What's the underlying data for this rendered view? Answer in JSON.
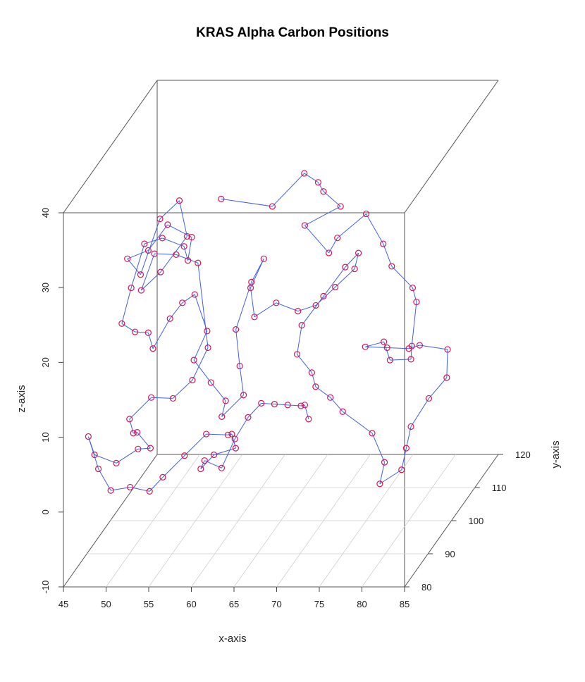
{
  "chart_data": {
    "type": "scatter",
    "title": "KRAS Alpha Carbon Positions",
    "xlabel": "x-axis",
    "ylabel": "y-axis",
    "zlabel": "z-axis",
    "xlim": [
      45,
      85
    ],
    "ylim": [
      80,
      120
    ],
    "zlim": [
      -10,
      40
    ],
    "x_ticks": [
      "45",
      "50",
      "55",
      "60",
      "65",
      "70",
      "75",
      "80",
      "85"
    ],
    "y_ticks": [
      "80",
      "90",
      "100",
      "110",
      "120"
    ],
    "z_ticks": [
      "-10",
      "0",
      "10",
      "20",
      "30",
      "40"
    ],
    "grid": true,
    "connected": true,
    "point_color": "#d4145a",
    "line_color": "#3f5fe8",
    "series": [
      {
        "points": [
          [
            58,
            100,
            33
          ],
          [
            64,
            100,
            32
          ],
          [
            65,
            110,
            32
          ],
          [
            68,
            105,
            33
          ],
          [
            70,
            100,
            34
          ],
          [
            72,
            100,
            32
          ],
          [
            70,
            92,
            33
          ],
          [
            72,
            95,
            28
          ],
          [
            73,
            95,
            30
          ],
          [
            75,
            100,
            31
          ],
          [
            77,
            100,
            27
          ],
          [
            78,
            100,
            24
          ],
          [
            81,
            98,
            22
          ],
          [
            82,
            96,
            21
          ],
          [
            82,
            94,
            16
          ],
          [
            83,
            90,
            16
          ],
          [
            80,
            92,
            15
          ],
          [
            79,
            93,
            17
          ],
          [
            76,
            96,
            15
          ],
          [
            78,
            98,
            14
          ],
          [
            80,
            100,
            13
          ],
          [
            81,
            101,
            13
          ],
          [
            84,
            102,
            12
          ],
          [
            85,
            98,
            10
          ],
          [
            84,
            94,
            9
          ],
          [
            83,
            90,
            7
          ],
          [
            83,
            88,
            5
          ],
          [
            83,
            86,
            3
          ],
          [
            81,
            84,
            2
          ],
          [
            81,
            86,
            4
          ],
          [
            79,
            88,
            7
          ],
          [
            75,
            90,
            9
          ],
          [
            73,
            92,
            10
          ],
          [
            71,
            93,
            11
          ],
          [
            70,
            95,
            12
          ],
          [
            68,
            96,
            14
          ],
          [
            68,
            98,
            17
          ],
          [
            70,
            100,
            20
          ],
          [
            72,
            102,
            23
          ],
          [
            73,
            104,
            24
          ],
          [
            72,
            106,
            21
          ],
          [
            70,
            105,
            19
          ],
          [
            68,
            104,
            17
          ],
          [
            67,
            100,
            18
          ],
          [
            65,
            98,
            20
          ],
          [
            63,
            96,
            19
          ],
          [
            62,
            98,
            22
          ],
          [
            63,
            100,
            25
          ],
          [
            61,
            102,
            21
          ],
          [
            60,
            99,
            16
          ],
          [
            61,
            97,
            12
          ],
          [
            62,
            95,
            9
          ],
          [
            60,
            93,
            7
          ],
          [
            61,
            91,
            10
          ],
          [
            59,
            92,
            12
          ],
          [
            57,
            92,
            15
          ],
          [
            58,
            94,
            18
          ],
          [
            56,
            96,
            22
          ],
          [
            54,
            98,
            20
          ],
          [
            52,
            100,
            17
          ],
          [
            50,
            100,
            13
          ],
          [
            50,
            98,
            16
          ],
          [
            49,
            96,
            17
          ],
          [
            48,
            94,
            19
          ],
          [
            48,
            98,
            22
          ],
          [
            49,
            100,
            27
          ],
          [
            50,
            104,
            26
          ],
          [
            52,
            106,
            24
          ],
          [
            53,
            104,
            23
          ],
          [
            54,
            102,
            27
          ],
          [
            52,
            99,
            30
          ],
          [
            50,
            98,
            27
          ],
          [
            47,
            100,
            25
          ],
          [
            48,
            102,
            22
          ],
          [
            50,
            103,
            29
          ],
          [
            52,
            104,
            31
          ],
          [
            54,
            100,
            28
          ],
          [
            52,
            96,
            25
          ],
          [
            50,
            95,
            23
          ],
          [
            51,
            97,
            27
          ],
          [
            53,
            99,
            26
          ],
          [
            55,
            101,
            24
          ],
          [
            57,
            98,
            14
          ],
          [
            56,
            95,
            11
          ],
          [
            54,
            94,
            9
          ],
          [
            52,
            92,
            10
          ],
          [
            50,
            90,
            8
          ],
          [
            51,
            88,
            7
          ],
          [
            52,
            86,
            8
          ],
          [
            53,
            88,
            5
          ],
          [
            51,
            90,
            4
          ],
          [
            49,
            88,
            3
          ],
          [
            47,
            86,
            5
          ],
          [
            46,
            87,
            7
          ],
          [
            48,
            84,
            4
          ],
          [
            50,
            82,
            2
          ],
          [
            52,
            83,
            2
          ],
          [
            54,
            84,
            1
          ],
          [
            55,
            86,
            2
          ],
          [
            57,
            88,
            4
          ],
          [
            59,
            90,
            6
          ],
          [
            61,
            92,
            5
          ],
          [
            62,
            90,
            6
          ],
          [
            63,
            88,
            5
          ],
          [
            61,
            86,
            5
          ],
          [
            60,
            84,
            4
          ],
          [
            61,
            82,
            6
          ],
          [
            63,
            82,
            5
          ],
          [
            64,
            84,
            8
          ],
          [
            65,
            86,
            10
          ],
          [
            66,
            88,
            11
          ],
          [
            67,
            90,
            10
          ],
          [
            68,
            92,
            9
          ],
          [
            69,
            94,
            8
          ],
          [
            70,
            92,
            9
          ],
          [
            71,
            90,
            8
          ]
        ]
      }
    ]
  }
}
